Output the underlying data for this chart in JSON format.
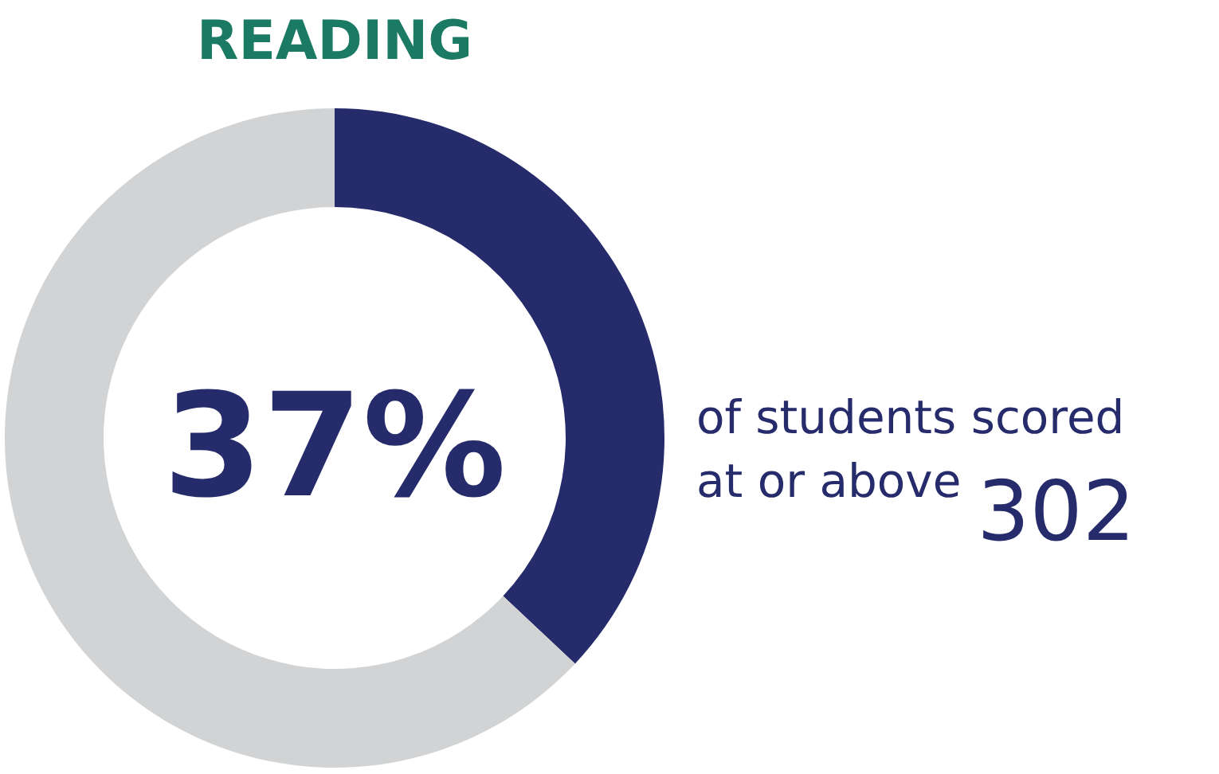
{
  "chart_data": {
    "type": "donut",
    "title": "READING",
    "categories": [
      null,
      null
    ],
    "values": [
      37,
      63
    ],
    "colors": [
      "#262b6b",
      "#d1d3d4"
    ],
    "annotations": [
      "37%",
      "of students scored",
      "at or above",
      "302"
    ]
  }
}
